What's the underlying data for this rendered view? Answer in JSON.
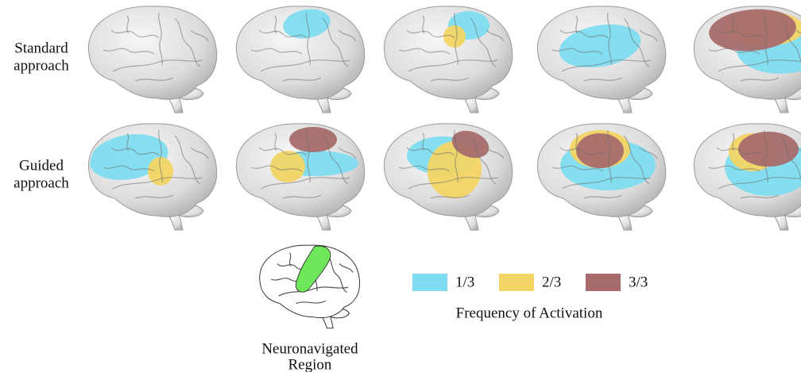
{
  "rows": [
    {
      "label": [
        "Standard",
        "approach"
      ]
    },
    {
      "label": [
        "Guided",
        "approach"
      ]
    }
  ],
  "legend": {
    "title": "Frequency of Activation",
    "items": [
      {
        "label": "1/3",
        "color": "#7fdcf0"
      },
      {
        "label": "2/3",
        "color": "#f2d564"
      },
      {
        "label": "3/3",
        "color": "#a86b6b"
      }
    ]
  },
  "inset": {
    "label": [
      "Neuronavigated",
      "Region"
    ],
    "color": "#6ee85a"
  }
}
